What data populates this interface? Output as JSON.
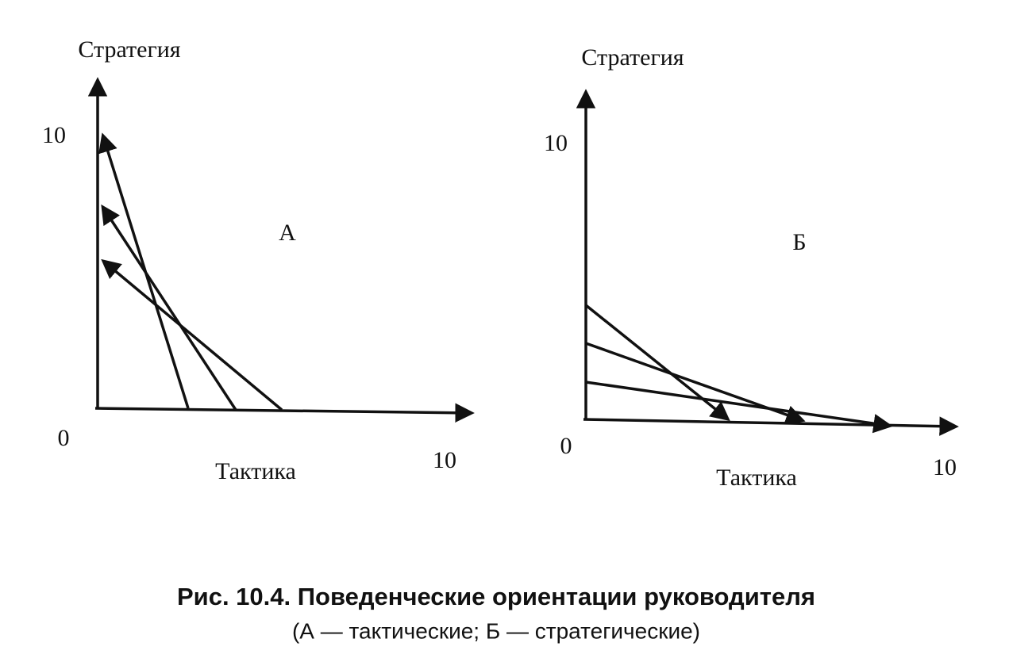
{
  "panels": [
    {
      "y_label": "Стратегия",
      "y_max": "10",
      "origin": "0",
      "x_label": "Тактика",
      "x_max": "10",
      "letter": "А"
    },
    {
      "y_label": "Стратегия",
      "y_max": "10",
      "origin": "0",
      "x_label": "Тактика",
      "x_max": "10",
      "letter": "Б"
    }
  ],
  "caption": {
    "line1": "Рис. 10.4. Поведенческие ориентации руководителя",
    "line2": "(А — тактические; Б — стратегические)"
  }
}
